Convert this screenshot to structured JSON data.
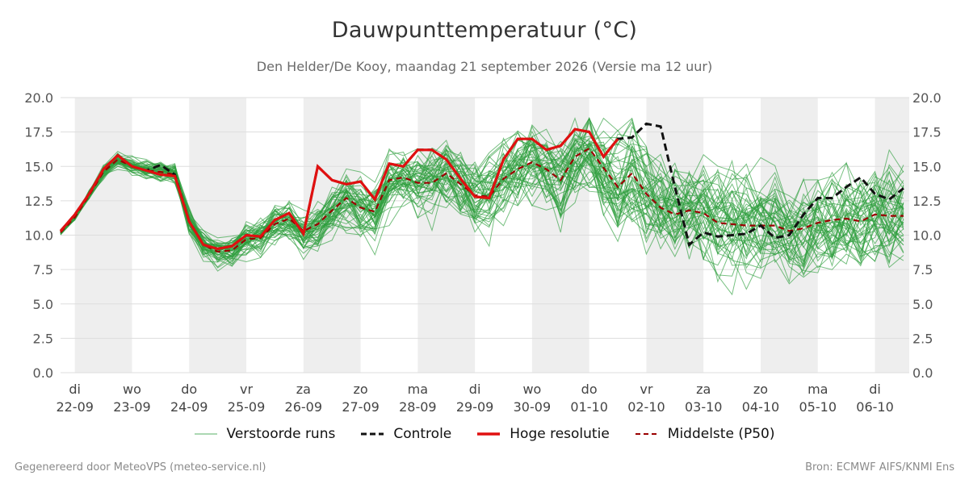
{
  "chart_data": {
    "type": "line",
    "title": "Dauwpunttemperatuur (°C)",
    "subtitle": "Den Helder/De Kooy, maandag 21 september 2026 (Versie ma 12 uur)",
    "ylim": [
      0,
      20
    ],
    "yticks": [
      "0.0",
      "2.5",
      "5.0",
      "7.5",
      "10.0",
      "12.5",
      "15.0",
      "17.5",
      "20.0"
    ],
    "grid": true,
    "xlim": [
      -0.25,
      14.6
    ],
    "x_unit": "days since 22-09 00:00",
    "days": [
      {
        "weekday": "di",
        "date": "22-09"
      },
      {
        "weekday": "wo",
        "date": "23-09"
      },
      {
        "weekday": "do",
        "date": "24-09"
      },
      {
        "weekday": "vr",
        "date": "25-09"
      },
      {
        "weekday": "za",
        "date": "26-09"
      },
      {
        "weekday": "zo",
        "date": "27-09"
      },
      {
        "weekday": "ma",
        "date": "28-09"
      },
      {
        "weekday": "di",
        "date": "29-09"
      },
      {
        "weekday": "wo",
        "date": "30-09"
      },
      {
        "weekday": "do",
        "date": "01-10"
      },
      {
        "weekday": "vr",
        "date": "02-10"
      },
      {
        "weekday": "za",
        "date": "03-10"
      },
      {
        "weekday": "zo",
        "date": "04-10"
      },
      {
        "weekday": "ma",
        "date": "05-10"
      },
      {
        "weekday": "di",
        "date": "06-10"
      }
    ],
    "legend_position": "bottom",
    "colors": {
      "ensemble": "#2e9e3e",
      "control": "#111111",
      "high_res": "#e01010",
      "median": "#9a0000",
      "band": "#eeeeee",
      "grid": "#dddddd"
    },
    "ensemble_members": 50,
    "series": [
      {
        "name": "Controle",
        "style": "dashed",
        "x": [
          -0.25,
          0,
          0.25,
          0.5,
          0.75,
          1,
          1.25,
          1.5,
          1.75,
          2,
          2.25,
          2.5,
          2.75,
          3,
          3.25,
          3.5,
          3.75,
          4,
          4.25,
          4.5,
          4.75,
          5,
          5.25,
          5.5,
          5.75,
          6,
          6.25,
          6.5,
          6.75,
          7,
          7.25,
          7.5,
          7.75,
          8,
          8.25,
          8.5,
          8.75,
          9,
          9.25,
          9.5,
          9.75,
          10,
          10.25,
          10.5,
          10.75,
          11,
          11.25,
          11.5,
          11.75,
          12,
          12.25,
          12.5,
          12.75,
          13,
          13.25,
          13.5,
          13.75,
          14,
          14.25,
          14.5
        ],
        "values": [
          10.3,
          11.5,
          13.0,
          14.8,
          15.8,
          15.0,
          14.7,
          15.1,
          14.4,
          11.0,
          9.3,
          9.0,
          9.2,
          10.0,
          9.9,
          11.1,
          11.6,
          10.1,
          15.0,
          14.0,
          13.7,
          13.9,
          12.6,
          15.2,
          15.0,
          16.2,
          16.2,
          15.5,
          14.1,
          12.8,
          12.7,
          15.5,
          17.0,
          17.0,
          16.2,
          16.5,
          17.7,
          17.5,
          15.7,
          17.0,
          17.1,
          18.1,
          17.9,
          13.5,
          9.3,
          10.2,
          9.9,
          10.0,
          10.1,
          10.7,
          9.8,
          10.0,
          11.5,
          12.7,
          12.7,
          13.5,
          14.2,
          13.0,
          12.6,
          13.4
        ]
      },
      {
        "name": "Hoge resolutie",
        "style": "solid",
        "x": [
          -0.25,
          0,
          0.25,
          0.5,
          0.75,
          1,
          1.25,
          1.5,
          1.75,
          2,
          2.25,
          2.5,
          2.75,
          3,
          3.25,
          3.5,
          3.75,
          4,
          4.25,
          4.5,
          4.75,
          5,
          5.25,
          5.5,
          5.75,
          6,
          6.25,
          6.5,
          6.75,
          7,
          7.25,
          7.5,
          7.75,
          8,
          8.25,
          8.5,
          8.75,
          9,
          9.25,
          9.5
        ],
        "values": [
          10.3,
          11.5,
          13.0,
          14.8,
          15.8,
          15.0,
          14.7,
          14.4,
          14.3,
          11.0,
          9.3,
          9.0,
          9.2,
          10.0,
          9.9,
          11.1,
          11.6,
          10.1,
          15.0,
          14.0,
          13.7,
          13.9,
          12.6,
          15.2,
          15.0,
          16.2,
          16.2,
          15.5,
          14.1,
          12.8,
          12.7,
          15.5,
          17.0,
          17.0,
          16.2,
          16.5,
          17.7,
          17.5,
          15.7,
          17.0
        ]
      },
      {
        "name": "Middelste (P50)",
        "style": "dashed",
        "x": [
          -0.25,
          0,
          0.25,
          0.5,
          0.75,
          1,
          1.25,
          1.5,
          1.75,
          2,
          2.25,
          2.5,
          2.75,
          3,
          3.25,
          3.5,
          3.75,
          4,
          4.25,
          4.5,
          4.75,
          5,
          5.25,
          5.5,
          5.75,
          6,
          6.25,
          6.5,
          6.75,
          7,
          7.25,
          7.5,
          7.75,
          8,
          8.25,
          8.5,
          8.75,
          9,
          9.25,
          9.5,
          9.75,
          10,
          10.25,
          10.5,
          10.75,
          11,
          11.25,
          11.5,
          11.75,
          12,
          12.25,
          12.5,
          12.75,
          13,
          13.25,
          13.5,
          13.75,
          14,
          14.25,
          14.5
        ],
        "values": [
          10.2,
          11.3,
          12.9,
          14.6,
          15.5,
          15.0,
          14.7,
          14.6,
          14.4,
          11.0,
          9.3,
          8.8,
          8.9,
          9.7,
          9.8,
          10.8,
          11.2,
          10.3,
          10.8,
          11.8,
          12.7,
          12.0,
          11.7,
          14.0,
          14.2,
          13.8,
          13.8,
          14.5,
          13.7,
          12.9,
          12.8,
          14.1,
          14.8,
          15.3,
          14.8,
          14.0,
          15.7,
          16.3,
          14.9,
          13.5,
          14.5,
          13.0,
          12.0,
          11.5,
          11.8,
          11.6,
          10.9,
          10.8,
          10.7,
          10.7,
          10.7,
          10.3,
          10.5,
          10.9,
          11.1,
          11.2,
          11.0,
          11.5,
          11.4,
          11.4
        ]
      }
    ]
  },
  "legend": [
    {
      "key": "ensemble",
      "label": "Verstoorde runs"
    },
    {
      "key": "control",
      "label": "Controle"
    },
    {
      "key": "high_res",
      "label": "Hoge resolutie"
    },
    {
      "key": "median",
      "label": "Middelste (P50)"
    }
  ],
  "footer": {
    "left": "Gegenereerd door MeteoVPS (meteo-service.nl)",
    "right": "Bron: ECMWF AIFS/KNMI Ens"
  }
}
